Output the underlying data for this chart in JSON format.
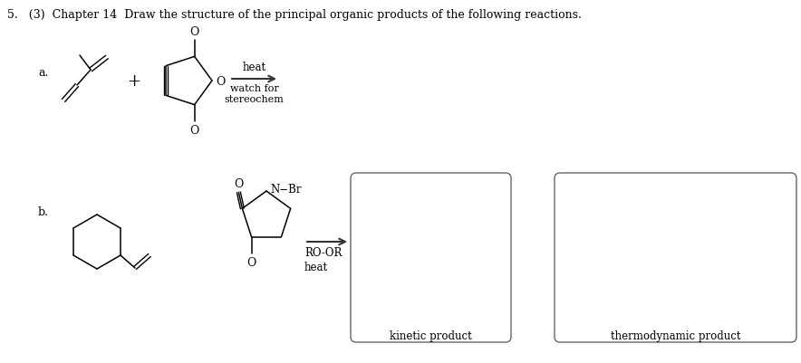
{
  "title": "5.   (3)  Chapter 14  Draw the structure of the principal organic products of the following reactions.",
  "background_color": "#ffffff",
  "label_a": "a.",
  "label_b": "b.",
  "heat_label": "heat",
  "watch_label": "watch for\nstereochem",
  "ro_or_label": "RO-OR\nheat",
  "n_br_label": "N−Br",
  "kinetic_label": "kinetic product",
  "thermo_label": "thermodynamic product",
  "plus_sign": "+",
  "box_color": "#888888",
  "arrow_color": "#333333",
  "text_color": "#000000",
  "font_size_title": 9.0,
  "font_size_labels": 9,
  "font_size_small": 8.5,
  "font_size_chem": 8.5
}
